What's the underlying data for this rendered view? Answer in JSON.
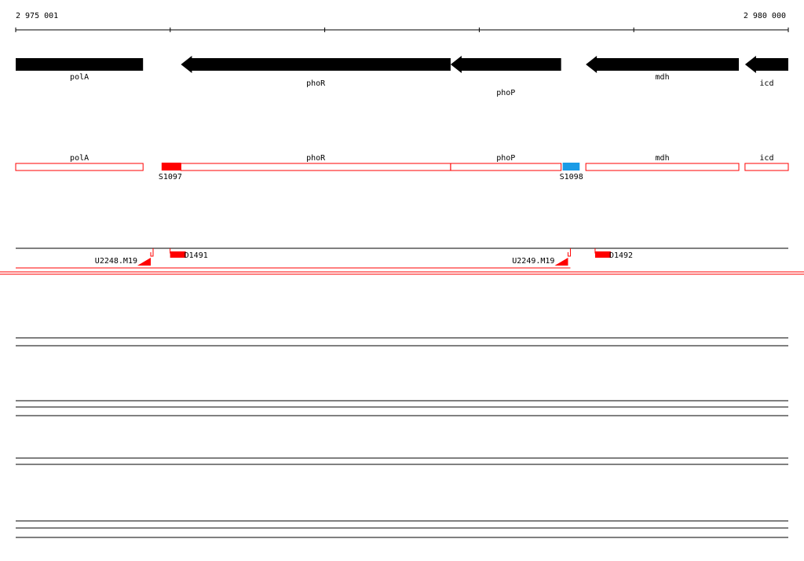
{
  "coords": {
    "start_label": "2 975 001",
    "end_label": "2 980 000",
    "start": 2975001,
    "end": 2980000
  },
  "genes": [
    {
      "name": "polA",
      "from": 2975001,
      "to": 2975825,
      "strand": "-"
    },
    {
      "name": "phoR",
      "from": 2976070,
      "to": 2977815,
      "strand": "-"
    },
    {
      "name": "phoP",
      "from": 2977815,
      "to": 2978530,
      "strand": "-"
    },
    {
      "name": "mdh",
      "from": 2978690,
      "to": 2979680,
      "strand": "-"
    },
    {
      "name": "icd",
      "from": 2979720,
      "to": 2980000,
      "strand": "-"
    }
  ],
  "features": [
    {
      "name": "S1097",
      "from": 2975945,
      "to": 2976070,
      "color": "#ff0000"
    },
    {
      "name": "S1098",
      "from": 2978540,
      "to": 2978650,
      "color": "#1a9be6"
    }
  ],
  "primers": [
    {
      "name": "U2248.M19",
      "pos": 2975890,
      "side": "left"
    },
    {
      "name": "D1491",
      "pos": 2976000,
      "side": "right"
    },
    {
      "name": "U2249.M19",
      "pos": 2978590,
      "side": "left"
    },
    {
      "name": "D1492",
      "pos": 2978750,
      "side": "right"
    }
  ],
  "colors": {
    "gene": "#000000",
    "gene_outline": "#ff0000",
    "primer": "#ff0000",
    "track_line": "#ff0000"
  }
}
